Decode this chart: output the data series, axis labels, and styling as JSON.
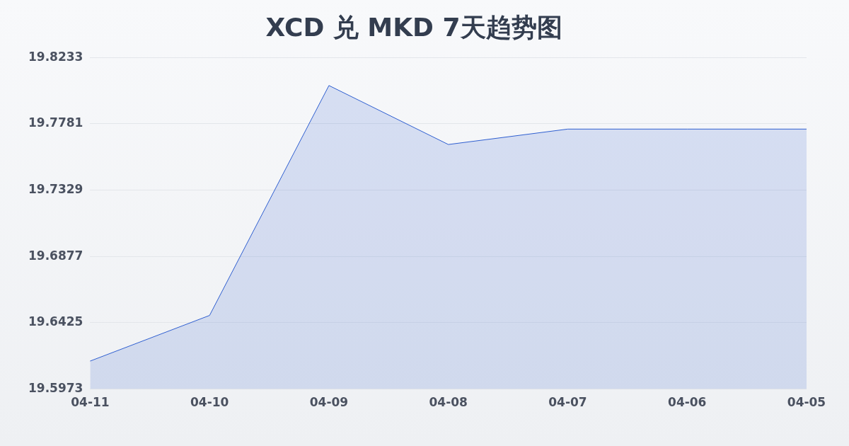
{
  "chart_data": {
    "type": "area",
    "title": "XCD 兑 MKD 7天趋势图",
    "categories": [
      "04-11",
      "04-10",
      "04-09",
      "04-08",
      "04-07",
      "04-06",
      "04-05"
    ],
    "series": [
      {
        "color": "#2f5fd0",
        "values": [
          19.6164,
          19.6475,
          19.8042,
          19.764,
          19.7745,
          19.7745,
          19.7745
        ]
      }
    ],
    "ylim": [
      19.5973,
      19.8233
    ],
    "yticks": [
      19.5973,
      19.6425,
      19.6877,
      19.7329,
      19.7781,
      19.8233
    ],
    "grid": "y",
    "legend": false,
    "marker": "none"
  }
}
